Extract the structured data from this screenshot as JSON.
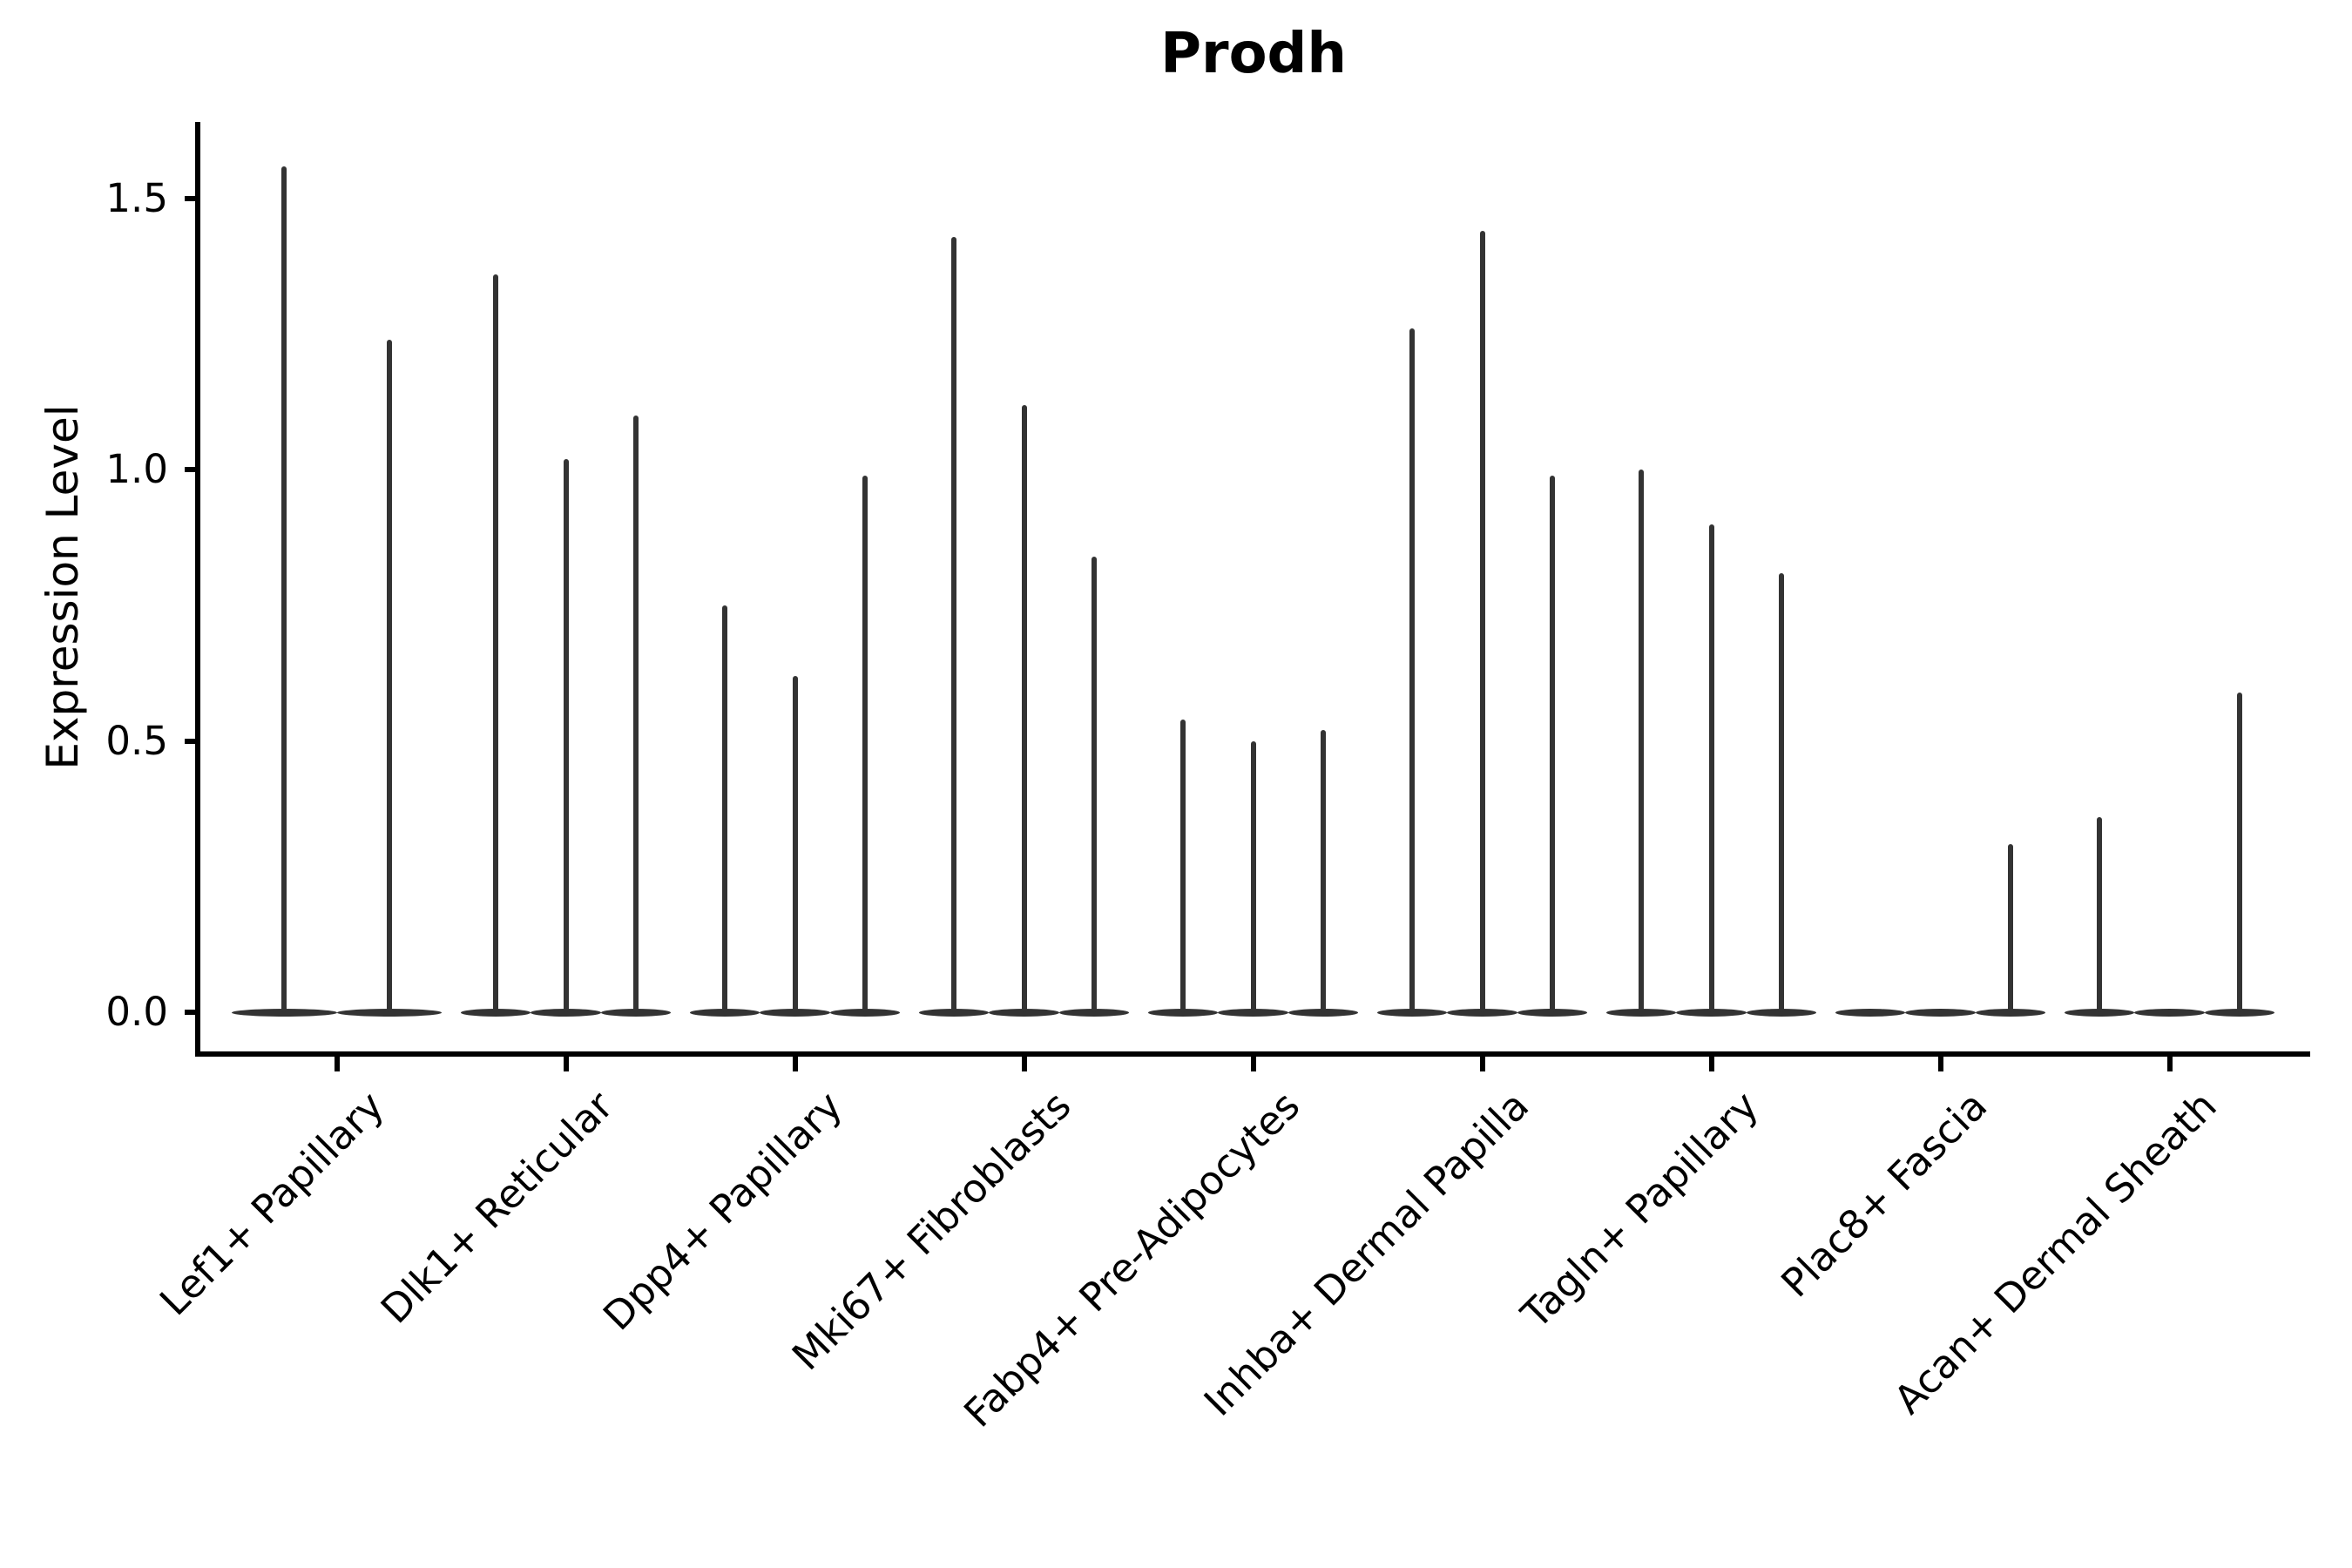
{
  "title": "Prodh",
  "y_axis": {
    "label": "Expression Level",
    "tick_labels": [
      "0.0",
      "0.5",
      "1.0",
      "1.5"
    ]
  },
  "colors": {
    "violin": "#333333",
    "axis": "#000000",
    "text": "#000000",
    "background": "#ffffff"
  },
  "chart_data": {
    "type": "violin",
    "title": "Prodh",
    "xlabel": "",
    "ylabel": "Expression Level",
    "yticks": [
      0,
      0.5,
      1,
      1.5
    ],
    "ylim": [
      -0.08,
      1.64
    ],
    "grid": false,
    "legend": "none",
    "style": "sparse-expression violins collapsed to a thin horizontal body at 0 with a narrow spike rising to the maximum expression; 2-3 grouped violins per cell-type category",
    "categories": [
      {
        "label": "Lef1+ Papillary",
        "violin_max": [
          1.56,
          1.24
        ]
      },
      {
        "label": "Dlk1+ Reticular",
        "violin_max": [
          1.36,
          1.02,
          1.1
        ]
      },
      {
        "label": "Dpp4+ Papillary",
        "violin_max": [
          0.75,
          0.62,
          0.99
        ]
      },
      {
        "label": "Mki67+ Fibroblasts",
        "violin_max": [
          1.43,
          1.12,
          0.84
        ]
      },
      {
        "label": "Fabp4+ Pre-Adipocytes",
        "violin_max": [
          0.54,
          0.5,
          0.52
        ]
      },
      {
        "label": "Inhba+ Dermal Papilla",
        "violin_max": [
          1.26,
          1.44,
          0.99
        ]
      },
      {
        "label": "Tagln+ Papillary",
        "violin_max": [
          1.0,
          0.9,
          0.81
        ]
      },
      {
        "label": "Plac8+ Fascia",
        "violin_max": [
          0,
          0,
          0.31
        ]
      },
      {
        "label": "Acan+ Dermal Sheath",
        "violin_max": [
          0.36,
          0,
          0.59
        ]
      }
    ]
  }
}
